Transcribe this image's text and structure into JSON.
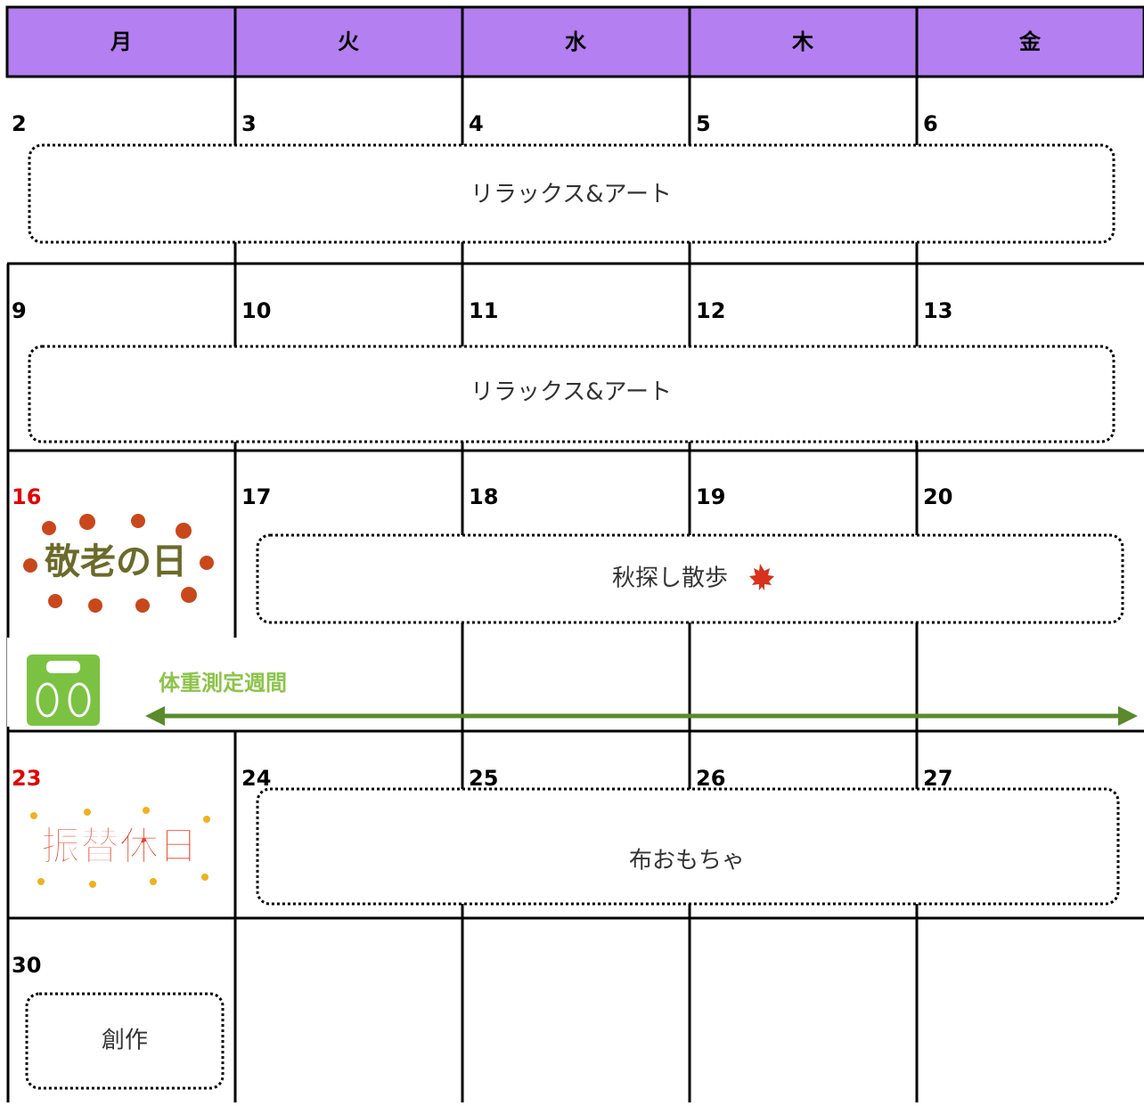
{
  "header": {
    "days": [
      "月",
      "火",
      "水",
      "木",
      "金"
    ]
  },
  "weeks": [
    {
      "dates": [
        "2",
        "3",
        "4",
        "5",
        "6"
      ],
      "events": [
        "リラックス&アート"
      ]
    },
    {
      "dates": [
        "9",
        "10",
        "11",
        "12",
        "13"
      ],
      "events": [
        "リラックス&アート"
      ]
    },
    {
      "dates": [
        "16",
        "17",
        "18",
        "19",
        "20"
      ],
      "holiday_art": "敬老の日",
      "events": [
        "秋探し散歩"
      ],
      "note": "体重測定週間"
    },
    {
      "dates": [
        "23",
        "24",
        "25",
        "26",
        "27"
      ],
      "holiday_art": "振替休日",
      "events": [
        "布おもちゃ"
      ]
    },
    {
      "dates": [
        "30"
      ],
      "events": [
        "創作"
      ]
    }
  ]
}
